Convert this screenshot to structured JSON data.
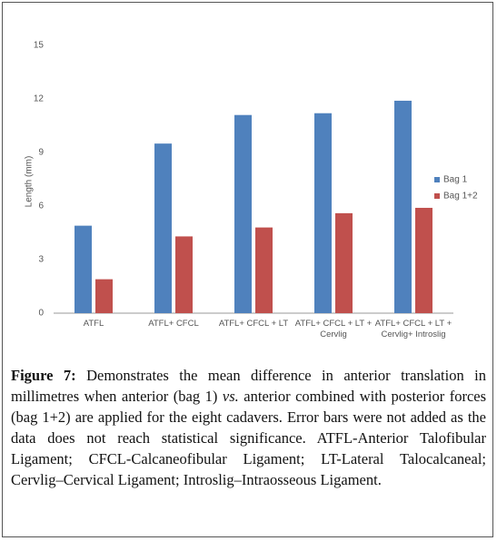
{
  "chart_data": {
    "type": "bar",
    "y_label": "Length (mm)",
    "categories": [
      "ATFL",
      "ATFL+ CFCL",
      "ATFL+ CFCL + LT",
      "ATFL+ CFCL + LT + Cervlig",
      "ATFL+ CFCL + LT + Cervlig+ Introslig"
    ],
    "series": [
      {
        "name": "Bag 1",
        "color": "#4f81bd",
        "values": [
          4.9,
          9.5,
          11.1,
          11.2,
          11.9
        ]
      },
      {
        "name": "Bag 1+2",
        "color": "#c0504d",
        "values": [
          1.9,
          4.3,
          4.8,
          5.6,
          5.9
        ]
      }
    ],
    "ylim": [
      0,
      15
    ],
    "yticks": [
      0,
      3,
      6,
      9,
      12,
      15
    ],
    "grid": false,
    "legend": "right"
  },
  "caption": {
    "label": "Figure 7:",
    "text_1": "Demonstrates the mean difference in anterior translation in millimetres when anterior (bag 1)",
    "emphasis": "vs.",
    "text_2": "anterior combined with posterior forces (bag 1+2) are applied for the eight cadavers. Error bars were not added as the data does not reach statistical significance. ATFL-Anterior Talofibular Ligament; CFCL-Calcaneofibular Ligament; LT-Lateral Talocalcaneal; Cervlig–Cervical Ligament; Introslig–Intraosseous Ligament."
  }
}
